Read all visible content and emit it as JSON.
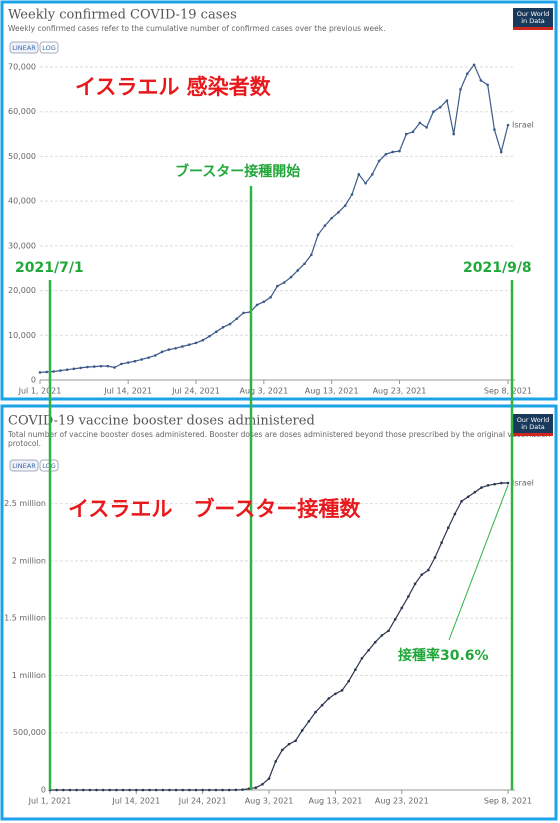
{
  "chart_data": [
    {
      "type": "line",
      "title": "Weekly confirmed COVID-19 cases",
      "subtitle": "Weekly confirmed cases refer to the cumulative number of confirmed cases over the previous week.",
      "buttons": [
        "LINEAR",
        "LOG"
      ],
      "logo": "Our World in Data",
      "x": [
        "2021-07-01",
        "2021-07-02",
        "2021-07-03",
        "2021-07-04",
        "2021-07-05",
        "2021-07-06",
        "2021-07-07",
        "2021-07-08",
        "2021-07-09",
        "2021-07-10",
        "2021-07-11",
        "2021-07-12",
        "2021-07-13",
        "2021-07-14",
        "2021-07-15",
        "2021-07-16",
        "2021-07-17",
        "2021-07-18",
        "2021-07-19",
        "2021-07-20",
        "2021-07-21",
        "2021-07-22",
        "2021-07-23",
        "2021-07-24",
        "2021-07-25",
        "2021-07-26",
        "2021-07-27",
        "2021-07-28",
        "2021-07-29",
        "2021-07-30",
        "2021-07-31",
        "2021-08-01",
        "2021-08-02",
        "2021-08-03",
        "2021-08-04",
        "2021-08-05",
        "2021-08-06",
        "2021-08-07",
        "2021-08-08",
        "2021-08-09",
        "2021-08-10",
        "2021-08-11",
        "2021-08-12",
        "2021-08-13",
        "2021-08-14",
        "2021-08-15",
        "2021-08-16",
        "2021-08-17",
        "2021-08-18",
        "2021-08-19",
        "2021-08-20",
        "2021-08-21",
        "2021-08-22",
        "2021-08-23",
        "2021-08-24",
        "2021-08-25",
        "2021-08-26",
        "2021-08-27",
        "2021-08-28",
        "2021-08-29",
        "2021-08-30",
        "2021-08-31",
        "2021-09-01",
        "2021-09-02",
        "2021-09-03",
        "2021-09-04",
        "2021-09-05",
        "2021-09-06",
        "2021-09-07",
        "2021-09-08"
      ],
      "series": [
        {
          "name": "Israel",
          "color": "#3c5a8a",
          "values": [
            1700,
            1800,
            1900,
            2100,
            2300,
            2500,
            2700,
            2900,
            3000,
            3100,
            3100,
            2800,
            3600,
            3900,
            4200,
            4600,
            5000,
            5500,
            6300,
            6800,
            7100,
            7500,
            7900,
            8300,
            8900,
            9800,
            10800,
            11800,
            12500,
            13700,
            15000,
            15200,
            16800,
            17500,
            18500,
            21000,
            21800,
            23000,
            24500,
            26000,
            28000,
            32500,
            34500,
            36200,
            37500,
            39000,
            41500,
            46000,
            44000,
            46000,
            49000,
            50500,
            51000,
            51200,
            55000,
            55500,
            57500,
            56500,
            60000,
            61000,
            62500,
            55000,
            65000,
            68500,
            70500,
            67000,
            66000,
            56000,
            51000,
            57000
          ]
        }
      ],
      "xlim": [
        "2021-07-01",
        "2021-09-08"
      ],
      "xticks": [
        {
          "value": "2021-07-01",
          "label": "Jul 1, 2021"
        },
        {
          "value": "2021-07-14",
          "label": "Jul 14, 2021"
        },
        {
          "value": "2021-07-24",
          "label": "Jul 24, 2021"
        },
        {
          "value": "2021-08-03",
          "label": "Aug 3, 2021"
        },
        {
          "value": "2021-08-13",
          "label": "Aug 13, 2021"
        },
        {
          "value": "2021-08-23",
          "label": "Aug 23, 2021"
        },
        {
          "value": "2021-09-08",
          "label": "Sep 8, 2021"
        }
      ],
      "ylim": [
        0,
        70000
      ],
      "yticks": [
        0,
        {
          "value": 10000,
          "label": "10,000"
        },
        {
          "value": 20000,
          "label": "20,000"
        },
        {
          "value": 30000,
          "label": "30,000"
        },
        {
          "value": 40000,
          "label": "40,000"
        },
        {
          "value": 50000,
          "label": "50,000"
        },
        {
          "value": 60000,
          "label": "60,000"
        },
        {
          "value": 70000,
          "label": "70,000"
        }
      ],
      "grid": true,
      "annotations": [
        "イスラエル 感染者数",
        "ブースター接種開始",
        "2021/7/1",
        "2021/9/8"
      ]
    },
    {
      "type": "line",
      "title": "COVID-19 vaccine booster doses administered",
      "subtitle": "Total number of vaccine booster doses administered. Booster doses are doses administered beyond those prescribed by the original vaccination protocol.",
      "buttons": [
        "LINEAR",
        "LOG"
      ],
      "logo": "Our World in Data",
      "x": [
        "2021-07-01",
        "2021-07-02",
        "2021-07-03",
        "2021-07-04",
        "2021-07-05",
        "2021-07-06",
        "2021-07-07",
        "2021-07-08",
        "2021-07-09",
        "2021-07-10",
        "2021-07-11",
        "2021-07-12",
        "2021-07-13",
        "2021-07-14",
        "2021-07-15",
        "2021-07-16",
        "2021-07-17",
        "2021-07-18",
        "2021-07-19",
        "2021-07-20",
        "2021-07-21",
        "2021-07-22",
        "2021-07-23",
        "2021-07-24",
        "2021-07-25",
        "2021-07-26",
        "2021-07-27",
        "2021-07-28",
        "2021-07-29",
        "2021-07-30",
        "2021-07-31",
        "2021-08-01",
        "2021-08-02",
        "2021-08-03",
        "2021-08-04",
        "2021-08-05",
        "2021-08-06",
        "2021-08-07",
        "2021-08-08",
        "2021-08-09",
        "2021-08-10",
        "2021-08-11",
        "2021-08-12",
        "2021-08-13",
        "2021-08-14",
        "2021-08-15",
        "2021-08-16",
        "2021-08-17",
        "2021-08-18",
        "2021-08-19",
        "2021-08-20",
        "2021-08-21",
        "2021-08-22",
        "2021-08-23",
        "2021-08-24",
        "2021-08-25",
        "2021-08-26",
        "2021-08-27",
        "2021-08-28",
        "2021-08-29",
        "2021-08-30",
        "2021-08-31",
        "2021-09-01",
        "2021-09-02",
        "2021-09-03",
        "2021-09-04",
        "2021-09-05",
        "2021-09-06",
        "2021-09-07",
        "2021-09-08"
      ],
      "series": [
        {
          "name": "Israel",
          "color": "#2a3550",
          "values": [
            0,
            0,
            0,
            0,
            0,
            0,
            0,
            0,
            0,
            0,
            0,
            0,
            0,
            0,
            0,
            0,
            0,
            0,
            0,
            0,
            0,
            0,
            0,
            0,
            0,
            0,
            0,
            0,
            1000,
            3000,
            12000,
            20000,
            50000,
            100000,
            250000,
            350000,
            400000,
            430000,
            520000,
            600000,
            680000,
            740000,
            800000,
            840000,
            870000,
            950000,
            1050000,
            1150000,
            1220000,
            1290000,
            1350000,
            1390000,
            1490000,
            1590000,
            1690000,
            1800000,
            1880000,
            1920000,
            2030000,
            2160000,
            2290000,
            2410000,
            2520000,
            2560000,
            2600000,
            2640000,
            2660000,
            2670000,
            2680000,
            2680000
          ]
        }
      ],
      "xlim": [
        "2021-07-01",
        "2021-09-08"
      ],
      "xticks": [
        {
          "value": "2021-07-01",
          "label": "Jul 1, 2021"
        },
        {
          "value": "2021-07-14",
          "label": "Jul 14, 2021"
        },
        {
          "value": "2021-07-24",
          "label": "Jul 24, 2021"
        },
        {
          "value": "2021-08-03",
          "label": "Aug 3, 2021"
        },
        {
          "value": "2021-08-13",
          "label": "Aug 13, 2021"
        },
        {
          "value": "2021-08-23",
          "label": "Aug 23, 2021"
        },
        {
          "value": "2021-09-08",
          "label": "Sep 8, 2021"
        }
      ],
      "ylim": [
        0,
        2750000
      ],
      "yticks": [
        0,
        {
          "value": 500000,
          "label": "500,000"
        },
        {
          "value": 1000000,
          "label": "1 million"
        },
        {
          "value": 1500000,
          "label": "1.5 million"
        },
        {
          "value": 2000000,
          "label": "2 million"
        },
        {
          "value": 2500000,
          "label": "2.5 million"
        }
      ],
      "grid": true,
      "annotations": [
        "イスラエル　ブースター接種数",
        "接種率30.6%"
      ]
    }
  ]
}
